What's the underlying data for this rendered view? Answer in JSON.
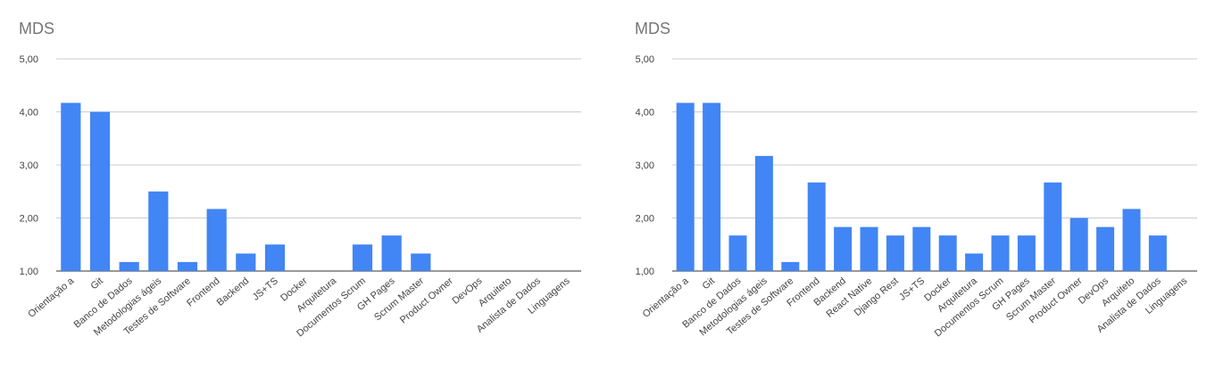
{
  "chart_data": [
    {
      "type": "bar",
      "title": "MDS",
      "xlabel": "",
      "ylabel": "",
      "ylim": [
        1,
        5
      ],
      "yticks": [
        "1,00",
        "2,00",
        "3,00",
        "4,00",
        "5,00"
      ],
      "grid": true,
      "bar_color": "#4285f4",
      "categories": [
        "Orientação a",
        "Git",
        "Banco de Dados",
        "Metodologias ágeis",
        "Testes de Software",
        "Frontend",
        "Backend",
        "JS+TS",
        "Docker",
        "Arquitetura",
        "Documentos Scrum",
        "GH Pages",
        "Scrum Master",
        "Product Owner",
        "DevOps",
        "Arquiteto",
        "Analista de Dados",
        "Linguagens"
      ],
      "values": [
        4.17,
        4.0,
        1.17,
        2.5,
        1.17,
        2.17,
        1.33,
        1.5,
        1.0,
        1.0,
        1.5,
        1.67,
        1.33,
        1.0,
        1.0,
        1.0,
        1.0,
        1.0
      ]
    },
    {
      "type": "bar",
      "title": "MDS",
      "xlabel": "",
      "ylabel": "",
      "ylim": [
        1,
        5
      ],
      "yticks": [
        "1,00",
        "2,00",
        "3,00",
        "4,00",
        "5,00"
      ],
      "grid": true,
      "bar_color": "#4285f4",
      "categories": [
        "Orientação a",
        "Git",
        "Banco de Dados",
        "Metodologias ágeis",
        "Testes de Software",
        "Frontend",
        "Backend",
        "React Native",
        "Django Rest",
        "JS+TS",
        "Docker",
        "Arquitetura",
        "Documentos Scrum",
        "GH Pages",
        "Scrum Master",
        "Product Owner",
        "DevOps",
        "Arquiteto",
        "Analista de Dados",
        "Linguagens"
      ],
      "values": [
        4.17,
        4.17,
        1.67,
        3.17,
        1.17,
        2.67,
        1.83,
        1.83,
        1.67,
        1.83,
        1.67,
        1.33,
        1.67,
        1.67,
        2.67,
        2.0,
        1.83,
        2.17,
        1.67,
        1.0
      ]
    }
  ]
}
